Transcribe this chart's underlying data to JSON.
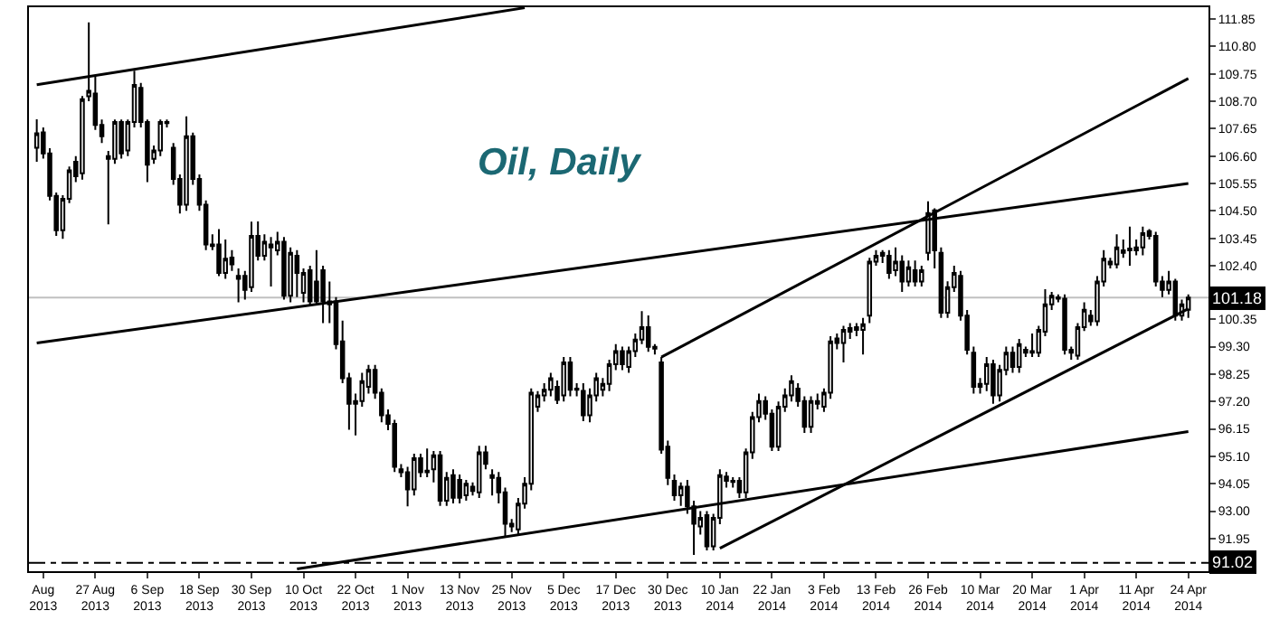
{
  "chart_data": {
    "type": "candlestick",
    "title": "Oil, Daily",
    "categories": [
      null,
      "Aug 2013",
      null,
      null,
      null,
      null,
      null,
      null,
      null,
      "27 Aug 2013",
      null,
      null,
      null,
      null,
      null,
      null,
      null,
      "6 Sep 2013",
      null,
      null,
      null,
      null,
      null,
      null,
      null,
      "18 Sep 2013",
      null,
      null,
      null,
      null,
      null,
      null,
      null,
      "30 Sep 2013",
      null,
      null,
      null,
      null,
      null,
      null,
      null,
      "10 Oct 2013",
      null,
      null,
      null,
      null,
      null,
      null,
      null,
      "22 Oct 2013",
      null,
      null,
      null,
      null,
      null,
      null,
      null,
      "1 Nov 2013",
      null,
      null,
      null,
      null,
      null,
      null,
      null,
      "13 Nov 2013",
      null,
      null,
      null,
      null,
      null,
      null,
      null,
      "25 Nov 2013",
      null,
      null,
      null,
      null,
      null,
      null,
      null,
      "5 Dec 2013",
      null,
      null,
      null,
      null,
      null,
      null,
      null,
      "17 Dec 2013",
      null,
      null,
      null,
      null,
      null,
      null,
      null,
      "30 Dec 2013",
      null,
      null,
      null,
      null,
      null,
      null,
      null,
      "10 Jan 2014",
      null,
      null,
      null,
      null,
      null,
      null,
      null,
      "22 Jan 2014",
      null,
      null,
      null,
      null,
      null,
      null,
      null,
      "3 Feb 2014",
      null,
      null,
      null,
      null,
      null,
      null,
      null,
      "13 Feb 2014",
      null,
      null,
      null,
      null,
      null,
      null,
      null,
      "26 Feb 2014",
      null,
      null,
      null,
      null,
      null,
      null,
      null,
      "10 Mar 2014",
      null,
      null,
      null,
      null,
      null,
      null,
      null,
      "20 Mar 2014",
      null,
      null,
      null,
      null,
      null,
      null,
      null,
      "1 Apr 2014",
      null,
      null,
      null,
      null,
      null,
      null,
      null,
      "11 Apr 2014",
      null,
      null,
      null,
      null,
      null,
      null,
      null,
      "24 Apr 2014"
    ],
    "ohlc": [
      [
        106.92,
        108.01,
        106.38,
        107.47
      ],
      [
        107.51,
        107.7,
        106.5,
        106.7
      ],
      [
        106.7,
        106.9,
        104.9,
        105.07
      ],
      [
        105.07,
        105.2,
        103.54,
        103.76
      ],
      [
        103.76,
        105.1,
        103.43,
        104.96
      ],
      [
        104.96,
        106.2,
        104.8,
        106.05
      ],
      [
        106.38,
        106.6,
        105.6,
        105.83
      ],
      [
        105.94,
        108.9,
        105.7,
        108.78
      ],
      [
        108.89,
        111.72,
        108.7,
        109.1
      ],
      [
        108.99,
        109.65,
        107.6,
        107.79
      ],
      [
        107.79,
        108.0,
        107.1,
        107.36
      ],
      [
        106.6,
        106.8,
        103.98,
        106.49
      ],
      [
        106.49,
        108.0,
        106.3,
        107.9
      ],
      [
        107.9,
        108.0,
        106.5,
        106.7
      ],
      [
        106.81,
        108.0,
        106.6,
        107.9
      ],
      [
        107.9,
        109.87,
        107.7,
        109.32
      ],
      [
        109.21,
        109.4,
        107.7,
        107.9
      ],
      [
        107.9,
        108.0,
        105.6,
        106.27
      ],
      [
        106.49,
        107.0,
        106.3,
        106.81
      ],
      [
        106.81,
        108.0,
        106.6,
        107.9
      ],
      [
        107.9,
        108.0,
        107.7,
        107.86
      ],
      [
        106.92,
        107.1,
        105.5,
        105.72
      ],
      [
        105.72,
        105.9,
        104.4,
        104.74
      ],
      [
        104.74,
        108.12,
        104.5,
        107.36
      ],
      [
        107.36,
        107.5,
        105.5,
        105.72
      ],
      [
        105.72,
        105.9,
        104.5,
        104.74
      ],
      [
        104.74,
        104.9,
        103.0,
        103.21
      ],
      [
        103.21,
        103.6,
        103.0,
        103.15
      ],
      [
        103.21,
        103.8,
        102.0,
        102.12
      ],
      [
        102.12,
        103.4,
        101.9,
        102.67
      ],
      [
        102.71,
        103.0,
        102.2,
        102.45
      ],
      [
        101.9,
        102.3,
        101.0,
        102.01
      ],
      [
        102.01,
        102.2,
        101.1,
        101.47
      ],
      [
        101.58,
        104.09,
        101.4,
        103.54
      ],
      [
        103.54,
        104.1,
        102.6,
        102.78
      ],
      [
        102.78,
        103.6,
        102.6,
        103.32
      ],
      [
        103.21,
        103.5,
        101.6,
        103.1
      ],
      [
        102.99,
        103.7,
        102.8,
        103.32
      ],
      [
        103.32,
        103.5,
        101.1,
        101.25
      ],
      [
        101.25,
        103.1,
        101.0,
        102.89
      ],
      [
        102.78,
        103.0,
        101.2,
        102.12
      ],
      [
        101.36,
        102.3,
        101.0,
        102.12
      ],
      [
        102.23,
        102.4,
        100.9,
        101.03
      ],
      [
        101.79,
        103.0,
        100.9,
        101.03
      ],
      [
        102.23,
        102.4,
        100.2,
        101.03
      ],
      [
        101.03,
        101.79,
        100.2,
        100.92
      ],
      [
        101.03,
        101.2,
        99.2,
        99.4
      ],
      [
        99.5,
        100.3,
        97.9,
        98.09
      ],
      [
        98.09,
        98.3,
        96.12,
        97.11
      ],
      [
        97.11,
        97.5,
        95.9,
        97.22
      ],
      [
        97.22,
        98.3,
        97.0,
        97.98
      ],
      [
        97.76,
        98.6,
        97.5,
        98.41
      ],
      [
        98.41,
        98.6,
        97.3,
        97.54
      ],
      [
        97.54,
        97.7,
        96.4,
        96.67
      ],
      [
        96.67,
        96.9,
        96.1,
        96.34
      ],
      [
        96.34,
        96.5,
        94.5,
        94.7
      ],
      [
        94.6,
        94.8,
        94.3,
        94.49
      ],
      [
        94.49,
        94.7,
        93.18,
        93.83
      ],
      [
        93.83,
        95.2,
        93.6,
        95.03
      ],
      [
        95.03,
        95.2,
        94.3,
        94.49
      ],
      [
        94.55,
        95.4,
        94.3,
        94.49
      ],
      [
        94.6,
        95.3,
        94.1,
        95.14
      ],
      [
        95.14,
        95.3,
        93.2,
        93.4
      ],
      [
        93.4,
        94.5,
        93.2,
        94.27
      ],
      [
        94.38,
        94.6,
        93.3,
        93.51
      ],
      [
        94.2,
        94.4,
        93.3,
        93.51
      ],
      [
        93.61,
        94.2,
        93.4,
        94.05
      ],
      [
        93.94,
        94.1,
        93.6,
        93.77
      ],
      [
        93.72,
        95.5,
        93.5,
        95.25
      ],
      [
        95.25,
        95.5,
        94.6,
        94.81
      ],
      [
        94.27,
        94.6,
        93.6,
        94.38
      ],
      [
        94.27,
        94.5,
        93.3,
        93.72
      ],
      [
        93.72,
        93.9,
        91.98,
        92.52
      ],
      [
        92.52,
        92.7,
        92.2,
        92.41
      ],
      [
        92.3,
        93.5,
        92.1,
        93.29
      ],
      [
        93.29,
        94.3,
        93.1,
        94.05
      ],
      [
        94.05,
        97.7,
        93.8,
        97.54
      ],
      [
        97.0,
        97.6,
        96.8,
        97.43
      ],
      [
        97.43,
        97.9,
        97.2,
        97.65
      ],
      [
        97.65,
        98.3,
        97.4,
        98.09
      ],
      [
        97.76,
        98.0,
        97.1,
        97.26
      ],
      [
        97.43,
        98.9,
        97.2,
        98.7
      ],
      [
        98.7,
        98.9,
        97.4,
        97.65
      ],
      [
        97.65,
        97.9,
        97.4,
        97.69
      ],
      [
        97.61,
        97.9,
        96.45,
        96.67
      ],
      [
        96.67,
        97.7,
        96.4,
        97.43
      ],
      [
        97.43,
        98.3,
        97.2,
        98.09
      ],
      [
        97.65,
        98.1,
        97.4,
        97.87
      ],
      [
        97.87,
        98.8,
        97.6,
        98.63
      ],
      [
        98.63,
        99.4,
        98.4,
        99.13
      ],
      [
        99.13,
        99.3,
        98.4,
        98.63
      ],
      [
        98.52,
        99.3,
        98.3,
        99.13
      ],
      [
        99.13,
        99.8,
        98.9,
        99.57
      ],
      [
        99.57,
        100.66,
        99.4,
        100.05
      ],
      [
        100.05,
        100.5,
        99.1,
        99.29
      ],
      [
        99.29,
        99.4,
        99.0,
        99.22
      ],
      [
        98.7,
        98.9,
        95.2,
        95.36
      ],
      [
        95.47,
        95.7,
        94.0,
        94.27
      ],
      [
        94.16,
        94.4,
        93.4,
        93.61
      ],
      [
        93.61,
        94.1,
        93.2,
        93.94
      ],
      [
        93.94,
        94.2,
        92.9,
        93.18
      ],
      [
        93.18,
        93.4,
        91.32,
        92.52
      ],
      [
        92.41,
        93.0,
        92.1,
        92.74
      ],
      [
        92.85,
        93.0,
        91.5,
        91.65
      ],
      [
        91.65,
        92.9,
        91.5,
        92.74
      ],
      [
        92.74,
        94.6,
        92.5,
        94.38
      ],
      [
        94.33,
        94.5,
        93.9,
        94.16
      ],
      [
        94.16,
        94.3,
        93.9,
        94.12
      ],
      [
        94.16,
        94.3,
        93.5,
        93.72
      ],
      [
        93.72,
        95.4,
        93.5,
        95.25
      ],
      [
        95.25,
        96.8,
        95.0,
        96.6
      ],
      [
        96.6,
        97.5,
        96.4,
        97.22
      ],
      [
        97.22,
        97.4,
        96.5,
        96.73
      ],
      [
        96.73,
        96.9,
        95.3,
        95.47
      ],
      [
        95.47,
        97.2,
        95.3,
        97.0
      ],
      [
        97.0,
        97.7,
        96.8,
        97.43
      ],
      [
        97.43,
        98.2,
        97.2,
        97.98
      ],
      [
        97.69,
        97.9,
        97.0,
        97.22
      ],
      [
        97.22,
        97.4,
        96.0,
        96.23
      ],
      [
        96.23,
        97.4,
        96.0,
        97.22
      ],
      [
        97.11,
        97.5,
        96.9,
        97.22
      ],
      [
        97.0,
        97.7,
        96.8,
        97.54
      ],
      [
        97.54,
        99.7,
        97.3,
        99.5
      ],
      [
        99.61,
        99.8,
        99.2,
        99.44
      ],
      [
        99.44,
        100.1,
        98.7,
        99.94
      ],
      [
        99.87,
        100.2,
        99.6,
        100.01
      ],
      [
        100.05,
        100.2,
        99.7,
        99.94
      ],
      [
        99.94,
        100.4,
        99.0,
        100.16
      ],
      [
        100.49,
        102.7,
        100.2,
        102.56
      ],
      [
        102.56,
        103.0,
        102.4,
        102.78
      ],
      [
        102.78,
        103.0,
        102.5,
        102.89
      ],
      [
        102.78,
        103.0,
        101.9,
        102.12
      ],
      [
        102.23,
        103.1,
        102.0,
        102.56
      ],
      [
        102.56,
        102.8,
        101.4,
        101.79
      ],
      [
        101.79,
        102.6,
        101.6,
        102.34
      ],
      [
        102.23,
        102.6,
        101.6,
        101.79
      ],
      [
        101.79,
        102.4,
        101.6,
        102.23
      ],
      [
        102.89,
        104.87,
        102.6,
        104.42
      ],
      [
        104.52,
        104.6,
        102.3,
        102.99
      ],
      [
        102.89,
        103.1,
        100.4,
        100.6
      ],
      [
        100.6,
        101.8,
        100.4,
        101.58
      ],
      [
        101.58,
        102.4,
        101.4,
        102.12
      ],
      [
        102.01,
        102.2,
        100.3,
        100.49
      ],
      [
        100.49,
        100.7,
        99.0,
        99.18
      ],
      [
        99.07,
        99.3,
        97.5,
        97.76
      ],
      [
        97.76,
        98.1,
        97.5,
        97.87
      ],
      [
        97.87,
        98.9,
        97.6,
        98.63
      ],
      [
        98.63,
        98.8,
        97.11,
        97.43
      ],
      [
        97.43,
        98.6,
        97.2,
        98.41
      ],
      [
        98.41,
        99.3,
        98.2,
        99.07
      ],
      [
        99.07,
        99.3,
        98.3,
        98.52
      ],
      [
        98.52,
        99.6,
        98.3,
        99.4
      ],
      [
        99.18,
        99.3,
        98.9,
        99.07
      ],
      [
        99.07,
        99.8,
        98.9,
        99.13
      ],
      [
        99.07,
        100.1,
        98.9,
        99.94
      ],
      [
        99.87,
        101.5,
        99.7,
        100.92
      ],
      [
        100.92,
        101.4,
        100.7,
        101.25
      ],
      [
        101.19,
        101.3,
        101.0,
        101.14
      ],
      [
        101.14,
        101.3,
        99.0,
        99.18
      ],
      [
        99.18,
        99.3,
        98.8,
        99.07
      ],
      [
        98.96,
        100.2,
        98.8,
        100.05
      ],
      [
        100.05,
        101.0,
        99.9,
        100.71
      ],
      [
        100.49,
        100.7,
        100.1,
        100.27
      ],
      [
        100.27,
        102.0,
        100.1,
        101.79
      ],
      [
        101.79,
        103.0,
        101.6,
        102.67
      ],
      [
        102.56,
        102.7,
        102.3,
        102.45
      ],
      [
        102.45,
        103.6,
        102.3,
        103.1
      ],
      [
        102.89,
        103.4,
        102.7,
        102.99
      ],
      [
        102.99,
        103.9,
        102.4,
        103.06
      ],
      [
        102.99,
        103.4,
        102.8,
        103.1
      ],
      [
        103.1,
        103.9,
        102.8,
        103.65
      ],
      [
        103.72,
        103.8,
        103.4,
        103.54
      ],
      [
        103.54,
        103.7,
        101.6,
        101.79
      ],
      [
        101.79,
        102.0,
        101.2,
        101.47
      ],
      [
        101.47,
        102.2,
        101.3,
        101.79
      ],
      [
        101.79,
        101.9,
        100.3,
        100.49
      ],
      [
        100.49,
        101.1,
        100.3,
        100.92
      ],
      [
        100.71,
        101.3,
        100.4,
        101.18
      ]
    ],
    "series": [
      {
        "type": "line",
        "color": "#000000",
        "values": [
          109.33,
          null,
          null,
          null,
          null,
          null,
          null,
          null,
          null,
          null,
          null,
          null,
          null,
          null,
          null,
          null,
          null,
          null,
          null,
          null,
          null,
          null,
          null,
          null,
          null,
          null,
          null,
          null,
          null,
          null,
          null,
          null,
          null,
          null,
          null,
          null,
          null,
          null,
          null,
          null,
          null,
          null,
          null,
          null,
          null,
          null,
          null,
          null,
          null,
          null,
          null,
          null,
          null,
          null,
          null,
          null,
          null,
          null,
          null,
          null,
          null,
          null,
          null,
          null,
          null,
          null,
          null,
          null,
          null,
          null,
          null,
          null,
          null,
          null,
          null,
          112.28,
          null,
          null,
          null,
          null,
          null,
          null,
          null,
          null,
          null,
          null,
          null,
          null,
          null,
          null,
          null,
          null,
          null,
          null,
          null,
          null,
          null,
          null,
          null,
          null,
          null,
          null,
          null,
          null,
          null,
          null,
          null,
          null,
          null,
          null,
          null,
          null,
          null,
          null,
          null,
          null,
          null,
          null,
          null,
          null,
          null,
          null,
          null,
          null,
          null,
          null,
          null,
          null,
          null,
          null,
          null,
          null,
          null,
          null,
          null,
          null,
          null,
          null,
          null,
          null,
          null,
          null,
          null,
          null,
          null,
          null,
          null,
          null,
          null,
          null,
          null,
          null,
          null,
          null,
          null,
          null,
          null,
          null,
          null,
          null,
          null,
          null,
          null,
          null,
          null,
          null,
          null,
          null,
          null,
          null,
          null,
          null,
          null,
          null,
          null,
          null,
          null,
          null
        ]
      },
      {
        "type": "line",
        "color": "#000000",
        "values": [
          99.44,
          null,
          null,
          null,
          null,
          null,
          null,
          null,
          null,
          null,
          null,
          null,
          null,
          null,
          null,
          null,
          null,
          null,
          null,
          null,
          null,
          null,
          null,
          null,
          null,
          null,
          null,
          null,
          null,
          null,
          null,
          null,
          null,
          null,
          null,
          null,
          null,
          null,
          null,
          null,
          null,
          null,
          null,
          null,
          null,
          null,
          null,
          null,
          null,
          null,
          null,
          null,
          null,
          null,
          null,
          null,
          null,
          null,
          null,
          null,
          null,
          null,
          null,
          null,
          null,
          null,
          null,
          null,
          null,
          null,
          null,
          null,
          null,
          null,
          null,
          null,
          null,
          null,
          null,
          null,
          null,
          null,
          null,
          null,
          null,
          null,
          null,
          null,
          null,
          null,
          null,
          null,
          null,
          null,
          null,
          null,
          null,
          null,
          null,
          null,
          null,
          null,
          null,
          null,
          null,
          null,
          null,
          null,
          null,
          null,
          null,
          null,
          null,
          null,
          null,
          null,
          null,
          null,
          null,
          null,
          null,
          null,
          null,
          null,
          null,
          null,
          null,
          null,
          null,
          null,
          null,
          null,
          null,
          null,
          null,
          null,
          null,
          null,
          null,
          null,
          null,
          null,
          null,
          null,
          null,
          null,
          null,
          null,
          null,
          null,
          null,
          null,
          null,
          null,
          null,
          null,
          null,
          null,
          null,
          null,
          null,
          null,
          null,
          null,
          null,
          null,
          null,
          null,
          null,
          null,
          null,
          null,
          null,
          null,
          null,
          null,
          null,
          105.55
        ]
      },
      {
        "type": "line",
        "color": "#000000",
        "values": [
          null,
          null,
          null,
          null,
          null,
          null,
          null,
          null,
          null,
          null,
          null,
          null,
          null,
          null,
          null,
          null,
          null,
          null,
          null,
          null,
          null,
          null,
          null,
          null,
          null,
          null,
          null,
          null,
          null,
          null,
          null,
          null,
          null,
          null,
          null,
          null,
          null,
          null,
          null,
          null,
          90.79,
          null,
          null,
          null,
          null,
          null,
          null,
          null,
          null,
          null,
          null,
          null,
          null,
          null,
          null,
          null,
          null,
          null,
          null,
          null,
          null,
          null,
          null,
          null,
          null,
          null,
          null,
          null,
          null,
          null,
          null,
          null,
          null,
          null,
          null,
          null,
          null,
          null,
          null,
          null,
          null,
          null,
          null,
          null,
          null,
          null,
          null,
          null,
          null,
          null,
          null,
          null,
          null,
          null,
          null,
          null,
          null,
          null,
          null,
          null,
          null,
          null,
          null,
          null,
          null,
          null,
          null,
          null,
          null,
          null,
          null,
          null,
          null,
          null,
          null,
          null,
          null,
          null,
          null,
          null,
          null,
          null,
          null,
          null,
          null,
          null,
          null,
          null,
          null,
          null,
          null,
          null,
          null,
          null,
          null,
          null,
          null,
          null,
          null,
          null,
          null,
          null,
          null,
          null,
          null,
          null,
          null,
          null,
          null,
          null,
          null,
          null,
          null,
          null,
          null,
          null,
          null,
          null,
          null,
          null,
          null,
          null,
          null,
          null,
          null,
          null,
          null,
          null,
          null,
          null,
          null,
          null,
          null,
          null,
          null,
          null,
          null,
          96.05
        ]
      },
      {
        "type": "line",
        "color": "#000000",
        "values": [
          null,
          null,
          null,
          null,
          null,
          null,
          null,
          null,
          null,
          null,
          null,
          null,
          null,
          null,
          null,
          null,
          null,
          null,
          null,
          null,
          null,
          null,
          null,
          null,
          null,
          null,
          null,
          null,
          null,
          null,
          null,
          null,
          null,
          null,
          null,
          null,
          null,
          null,
          null,
          null,
          null,
          null,
          null,
          null,
          null,
          null,
          null,
          null,
          null,
          null,
          null,
          null,
          null,
          null,
          null,
          null,
          null,
          null,
          null,
          null,
          null,
          null,
          null,
          null,
          null,
          null,
          null,
          null,
          null,
          null,
          null,
          null,
          null,
          null,
          null,
          null,
          null,
          null,
          null,
          null,
          null,
          null,
          null,
          null,
          null,
          null,
          null,
          null,
          null,
          null,
          null,
          null,
          null,
          null,
          null,
          null,
          98.9,
          null,
          null,
          null,
          null,
          null,
          null,
          null,
          null,
          null,
          null,
          null,
          null,
          null,
          null,
          null,
          null,
          null,
          null,
          null,
          null,
          null,
          null,
          null,
          null,
          null,
          null,
          null,
          null,
          null,
          null,
          null,
          null,
          null,
          null,
          null,
          null,
          null,
          null,
          null,
          null,
          null,
          null,
          null,
          null,
          null,
          null,
          null,
          null,
          null,
          null,
          null,
          null,
          null,
          null,
          null,
          null,
          null,
          null,
          null,
          null,
          null,
          null,
          null,
          null,
          null,
          null,
          null,
          null,
          null,
          null,
          null,
          null,
          null,
          null,
          null,
          null,
          null,
          null,
          null,
          null,
          109.57
        ]
      },
      {
        "type": "line",
        "color": "#000000",
        "values": [
          null,
          null,
          null,
          null,
          null,
          null,
          null,
          null,
          null,
          null,
          null,
          null,
          null,
          null,
          null,
          null,
          null,
          null,
          null,
          null,
          null,
          null,
          null,
          null,
          null,
          null,
          null,
          null,
          null,
          null,
          null,
          null,
          null,
          null,
          null,
          null,
          null,
          null,
          null,
          null,
          null,
          null,
          null,
          null,
          null,
          null,
          null,
          null,
          null,
          null,
          null,
          null,
          null,
          null,
          null,
          null,
          null,
          null,
          null,
          null,
          null,
          null,
          null,
          null,
          null,
          null,
          null,
          null,
          null,
          null,
          null,
          null,
          null,
          null,
          null,
          null,
          null,
          null,
          null,
          null,
          null,
          null,
          null,
          null,
          null,
          null,
          null,
          null,
          null,
          null,
          null,
          null,
          null,
          null,
          null,
          null,
          null,
          null,
          null,
          null,
          null,
          null,
          null,
          null,
          null,
          91.58,
          null,
          null,
          null,
          null,
          null,
          null,
          null,
          null,
          null,
          null,
          null,
          null,
          null,
          null,
          null,
          null,
          null,
          null,
          null,
          null,
          null,
          null,
          null,
          null,
          null,
          null,
          null,
          null,
          null,
          null,
          null,
          null,
          null,
          null,
          null,
          null,
          null,
          null,
          null,
          null,
          null,
          null,
          null,
          null,
          null,
          null,
          null,
          null,
          null,
          null,
          null,
          null,
          null,
          null,
          null,
          null,
          null,
          null,
          null,
          null,
          null,
          null,
          null,
          null,
          null,
          null,
          null,
          null,
          null,
          null,
          null,
          100.75
        ]
      }
    ],
    "ylim": [
      90.7,
      112.3
    ],
    "yticks": [
      {
        "value": 111.85,
        "label": "111.85"
      },
      {
        "value": 110.8,
        "label": "110.80"
      },
      {
        "value": 109.75,
        "label": "109.75"
      },
      {
        "value": 108.7,
        "label": "108.70"
      },
      {
        "value": 107.65,
        "label": "107.65"
      },
      {
        "value": 106.6,
        "label": "106.60"
      },
      {
        "value": 105.55,
        "label": "105.55"
      },
      {
        "value": 104.5,
        "label": "104.50"
      },
      {
        "value": 103.45,
        "label": "103.45"
      },
      {
        "value": 102.4,
        "label": "102.40"
      },
      {
        "value": 100.35,
        "label": "100.35"
      },
      {
        "value": 99.3,
        "label": "99.30"
      },
      {
        "value": 98.25,
        "label": "98.25"
      },
      {
        "value": 97.2,
        "label": "97.20"
      },
      {
        "value": 96.15,
        "label": "96.15"
      },
      {
        "value": 95.1,
        "label": "95.10"
      },
      {
        "value": 94.05,
        "label": "94.05"
      },
      {
        "value": 93.0,
        "label": "93.00"
      },
      {
        "value": 91.95,
        "label": "91.95"
      }
    ],
    "ref_lines": [
      {
        "axis": "y",
        "value": 101.18,
        "label": "101.18",
        "color": "#c0c0c0",
        "line_style": "solid"
      },
      {
        "axis": "y",
        "value": 91.02,
        "label": "91.02",
        "color": "#000000",
        "line_style": "dashed"
      }
    ],
    "grid": false
  }
}
